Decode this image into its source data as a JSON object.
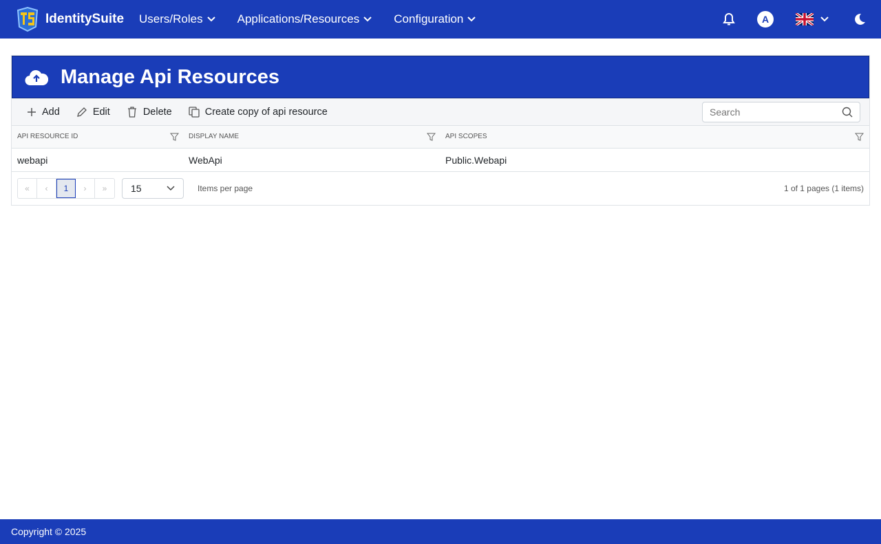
{
  "colors": {
    "primary": "#1a3db8",
    "logo_yellow": "#f5c518"
  },
  "nav": {
    "brand": "IdentitySuite",
    "menus": [
      "Users/Roles",
      "Applications/Resources",
      "Configuration"
    ],
    "avatar": "A"
  },
  "page": {
    "title": "Manage Api Resources"
  },
  "toolbar": {
    "add": "Add",
    "edit": "Edit",
    "delete": "Delete",
    "copy": "Create copy of api resource",
    "search_placeholder": "Search"
  },
  "table": {
    "columns": [
      "API RESOURCE ID",
      "DISPLAY NAME",
      "API SCOPES"
    ],
    "rows": [
      [
        "webapi",
        "WebApi",
        "Public.Webapi"
      ]
    ]
  },
  "pager": {
    "current": "1",
    "page_size": "15",
    "items_label": "Items per page",
    "info": "1 of 1 pages (1 items)",
    "first": "«",
    "prev": "‹",
    "next": "›",
    "last": "»"
  },
  "footer": {
    "text": "Copyright © 2025"
  }
}
